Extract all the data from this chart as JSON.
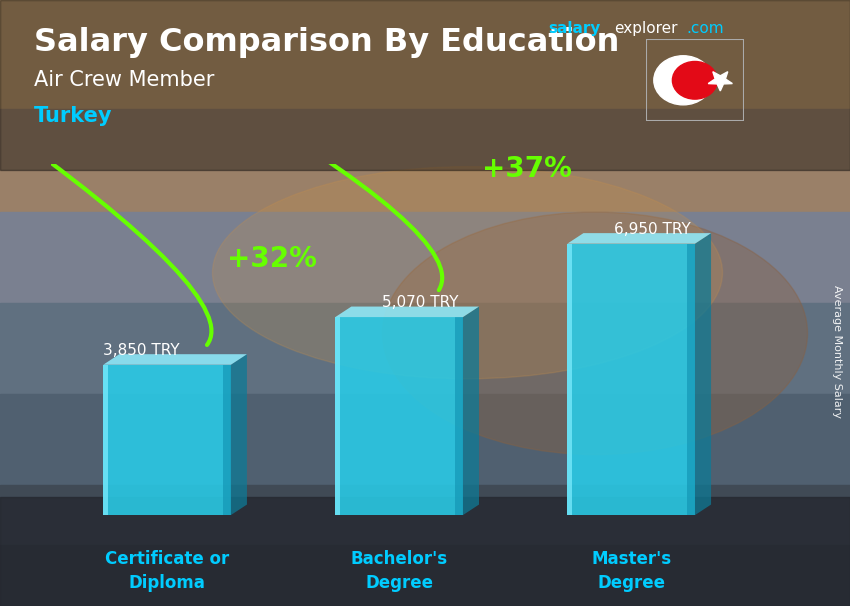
{
  "title_main": "Salary Comparison By Education",
  "subtitle": "Air Crew Member",
  "country": "Turkey",
  "categories": [
    "Certificate or\nDiploma",
    "Bachelor's\nDegree",
    "Master's\nDegree"
  ],
  "values": [
    3850,
    5070,
    6950
  ],
  "value_labels": [
    "3,850 TRY",
    "5,070 TRY",
    "6,950 TRY"
  ],
  "pct_labels": [
    "+32%",
    "+37%"
  ],
  "bar_color_face": "#29cce8",
  "bar_color_light": "#5de0f5",
  "bar_color_dark": "#1599b5",
  "bar_color_top": "#80eeff",
  "bar_color_side": "#0e7a96",
  "bg_top": "#b8956a",
  "bg_mid": "#8a7060",
  "bg_lower": "#4a5060",
  "bg_bottom": "#2a3040",
  "title_color": "#ffffff",
  "subtitle_color": "#ffffff",
  "country_color": "#00ccff",
  "value_label_color": "#ffffff",
  "pct_color": "#66ff00",
  "arrow_color": "#66ff00",
  "x_label_color": "#00ccff",
  "ylabel_text": "Average Monthly Salary",
  "bar_positions": [
    1.2,
    3.2,
    5.2
  ],
  "bar_width": 1.1,
  "ylim": [
    0,
    9000
  ],
  "flag_bg": "#e30a17",
  "figsize": [
    8.5,
    6.06
  ],
  "dpi": 100
}
